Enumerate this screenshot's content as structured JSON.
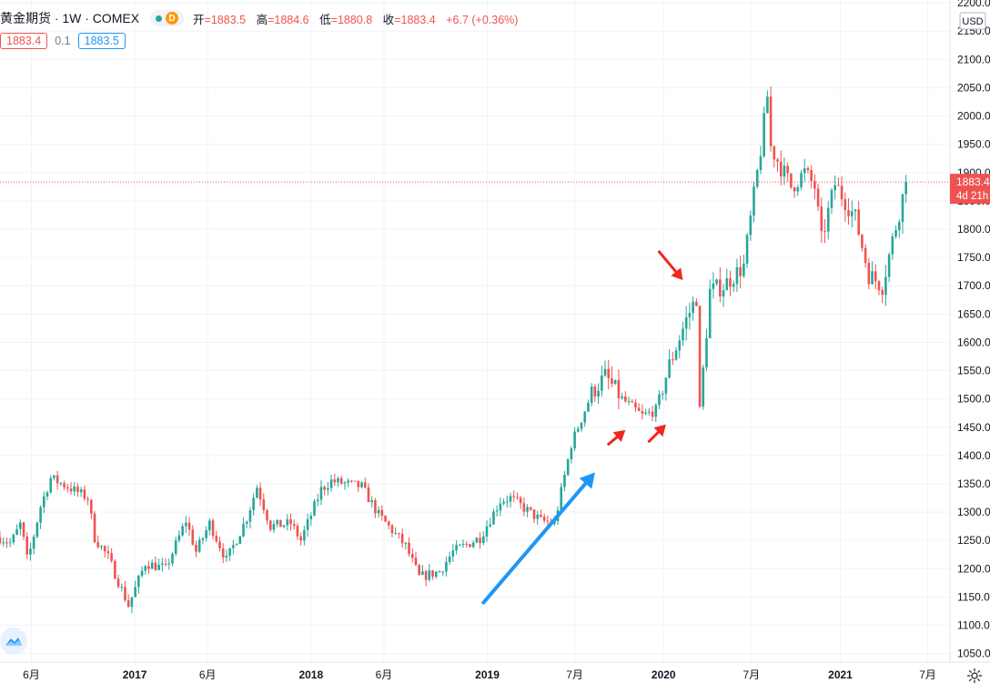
{
  "header": {
    "symbol_name": "黄金期货",
    "interval": "1W",
    "exchange": "COMEX",
    "market_status_label": "D",
    "ohlc": [
      {
        "label": "开",
        "value": "=1883.5"
      },
      {
        "label": "高",
        "value": "=1884.6"
      },
      {
        "label": "低",
        "value": "=1880.8"
      },
      {
        "label": "收",
        "value": "=1883.4"
      }
    ],
    "change": "+6.7 (+0.36%)",
    "bid": "1883.4",
    "spread": "0.1",
    "ask": "1883.5"
  },
  "price_scale": {
    "currency": "USD",
    "last_price": "1883.4",
    "countdown": "4d 21h"
  },
  "colors": {
    "up": "#26a69a",
    "down": "#ef5350",
    "annotation_arrow_red": "#f0281e",
    "annotation_arrow_blue": "#2196f3"
  },
  "icons": [
    "tradingview-logo-icon",
    "settings-gear-icon"
  ],
  "chart_data": {
    "type": "candlestick",
    "title": "",
    "y_range": [
      1035,
      2205
    ],
    "y_ticks": [
      1050,
      1100,
      1150,
      1200,
      1250,
      1300,
      1350,
      1400,
      1450,
      1500,
      1550,
      1600,
      1650,
      1700,
      1750,
      1800,
      1850,
      1900,
      1950,
      2000,
      2050,
      2100,
      2150,
      2200
    ],
    "x_range": [
      "2016-03-28",
      "2021-08-16"
    ],
    "x_ticks": [
      {
        "date": "2016-06-01",
        "label": "6月"
      },
      {
        "date": "2017-01-01",
        "label": "2017"
      },
      {
        "date": "2017-06-01",
        "label": "6月"
      },
      {
        "date": "2018-01-01",
        "label": "2018"
      },
      {
        "date": "2018-06-01",
        "label": "6月"
      },
      {
        "date": "2019-01-01",
        "label": "2019"
      },
      {
        "date": "2019-07-01",
        "label": "7月"
      },
      {
        "date": "2020-01-01",
        "label": "2020"
      },
      {
        "date": "2020-07-01",
        "label": "7月"
      },
      {
        "date": "2021-01-01",
        "label": "2021"
      },
      {
        "date": "2021-07-01",
        "label": "7月"
      }
    ],
    "last_price": 1883.4,
    "closes_anchor": [
      [
        "2016-03-28",
        1255
      ],
      [
        "2016-04-20",
        1245
      ],
      [
        "2016-05-10",
        1280
      ],
      [
        "2016-05-24",
        1212
      ],
      [
        "2016-06-20",
        1310
      ],
      [
        "2016-07-11",
        1360
      ],
      [
        "2016-08-15",
        1345
      ],
      [
        "2016-09-26",
        1325
      ],
      [
        "2016-10-10",
        1255
      ],
      [
        "2016-11-07",
        1220
      ],
      [
        "2016-12-19",
        1135
      ],
      [
        "2017-01-23",
        1210
      ],
      [
        "2017-03-06",
        1200
      ],
      [
        "2017-04-17",
        1285
      ],
      [
        "2017-05-08",
        1230
      ],
      [
        "2017-06-05",
        1280
      ],
      [
        "2017-07-10",
        1215
      ],
      [
        "2017-08-21",
        1290
      ],
      [
        "2017-09-11",
        1345
      ],
      [
        "2017-10-09",
        1275
      ],
      [
        "2017-11-20",
        1280
      ],
      [
        "2017-12-11",
        1250
      ],
      [
        "2018-01-22",
        1340
      ],
      [
        "2018-02-12",
        1355
      ],
      [
        "2018-04-16",
        1345
      ],
      [
        "2018-05-21",
        1295
      ],
      [
        "2018-07-16",
        1240
      ],
      [
        "2018-08-13",
        1185
      ],
      [
        "2018-09-24",
        1195
      ],
      [
        "2018-10-22",
        1230
      ],
      [
        "2018-12-17",
        1255
      ],
      [
        "2019-01-28",
        1320
      ],
      [
        "2019-02-18",
        1325
      ],
      [
        "2019-04-22",
        1285
      ],
      [
        "2019-05-20",
        1280
      ],
      [
        "2019-06-24",
        1420
      ],
      [
        "2019-08-05",
        1510
      ],
      [
        "2019-09-02",
        1540
      ],
      [
        "2019-10-07",
        1500
      ],
      [
        "2019-11-18",
        1470
      ],
      [
        "2019-12-16",
        1480
      ],
      [
        "2020-01-13",
        1560
      ],
      [
        "2020-02-17",
        1640
      ],
      [
        "2020-03-09",
        1680
      ],
      [
        "2020-03-16",
        1480
      ],
      [
        "2020-04-06",
        1690
      ],
      [
        "2020-05-04",
        1700
      ],
      [
        "2020-06-15",
        1735
      ],
      [
        "2020-07-20",
        1940
      ],
      [
        "2020-08-03",
        2035
      ],
      [
        "2020-08-10",
        1945
      ],
      [
        "2020-09-21",
        1875
      ],
      [
        "2020-10-19",
        1900
      ],
      [
        "2020-11-09",
        1875
      ],
      [
        "2020-11-23",
        1780
      ],
      [
        "2020-12-21",
        1880
      ],
      [
        "2021-01-11",
        1850
      ],
      [
        "2021-02-01",
        1820
      ],
      [
        "2021-03-01",
        1720
      ],
      [
        "2021-03-29",
        1700
      ],
      [
        "2021-04-19",
        1780
      ],
      [
        "2021-05-03",
        1830
      ],
      [
        "2021-05-17",
        1883
      ]
    ],
    "annotations": [
      {
        "type": "arrow",
        "color": "blue",
        "from": [
          "2018-12-24",
          1140
        ],
        "to": [
          "2019-08-12",
          1370
        ]
      },
      {
        "type": "arrow",
        "color": "red",
        "from": [
          "2019-09-09",
          1420
        ],
        "to": [
          "2019-10-14",
          1445
        ]
      },
      {
        "type": "arrow",
        "color": "red",
        "from": [
          "2019-12-02",
          1425
        ],
        "to": [
          "2020-01-06",
          1455
        ]
      },
      {
        "type": "arrow",
        "color": "red",
        "from": [
          "2019-12-23",
          1760
        ],
        "to": [
          "2020-02-10",
          1710
        ]
      }
    ]
  }
}
